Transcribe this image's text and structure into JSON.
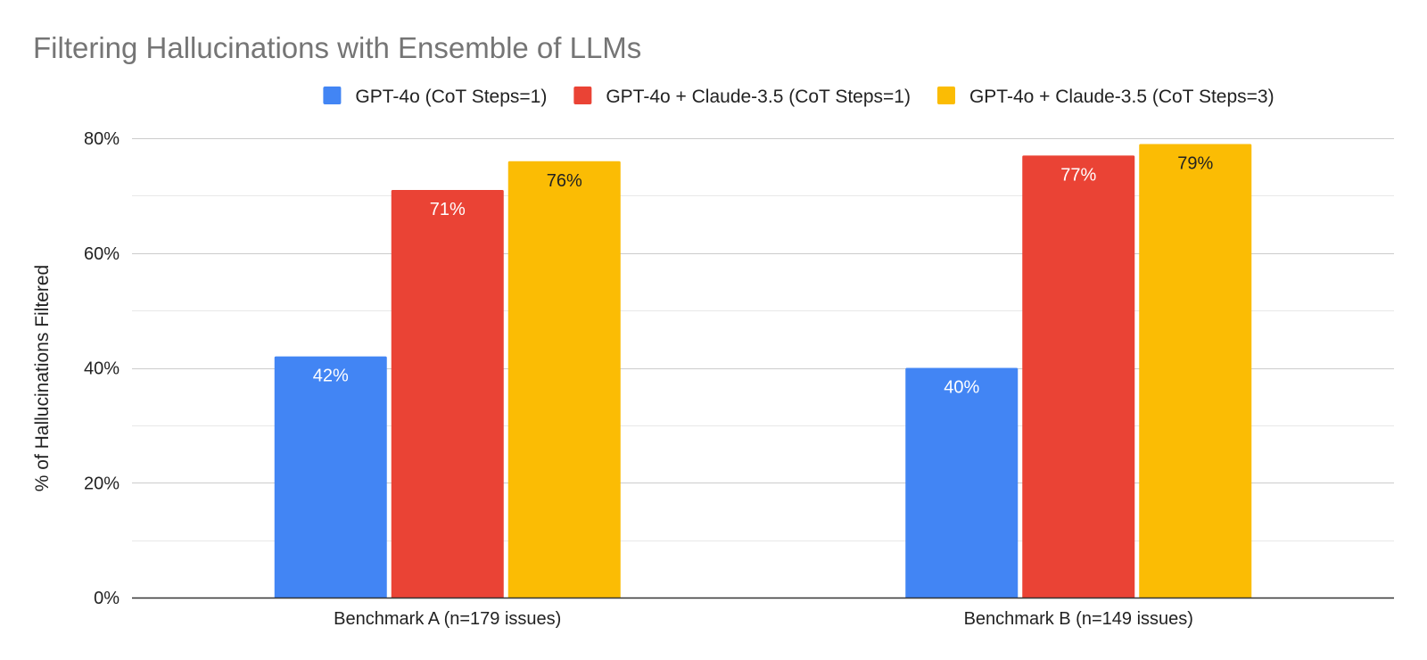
{
  "chart_data": {
    "type": "bar",
    "title": "Filtering Hallucinations with Ensemble of LLMs",
    "ylabel": "% of Hallucinations Filtered",
    "xlabel": "",
    "categories": [
      "Benchmark A (n=179 issues)",
      "Benchmark B (n=149 issues)"
    ],
    "series": [
      {
        "name": "GPT-4o (CoT Steps=1)",
        "color": "#4285F4",
        "label_color": "#ffffff",
        "values": [
          42,
          40
        ],
        "labels": [
          "42%",
          "40%"
        ]
      },
      {
        "name": "GPT-4o + Claude-3.5 (CoT Steps=1)",
        "color": "#EA4335",
        "label_color": "#ffffff",
        "values": [
          71,
          77
        ],
        "labels": [
          "71%",
          "77%"
        ]
      },
      {
        "name": "GPT-4o + Claude-3.5 (CoT Steps=3)",
        "color": "#FBBC04",
        "label_color": "#222222",
        "values": [
          76,
          79
        ],
        "labels": [
          "76%",
          "79%"
        ]
      }
    ],
    "ylim": [
      0,
      80
    ],
    "yticks": [
      0,
      20,
      40,
      60,
      80
    ],
    "ytick_labels": [
      "0%",
      "20%",
      "40%",
      "60%",
      "80%"
    ],
    "grid": true,
    "legend_position": "top"
  }
}
